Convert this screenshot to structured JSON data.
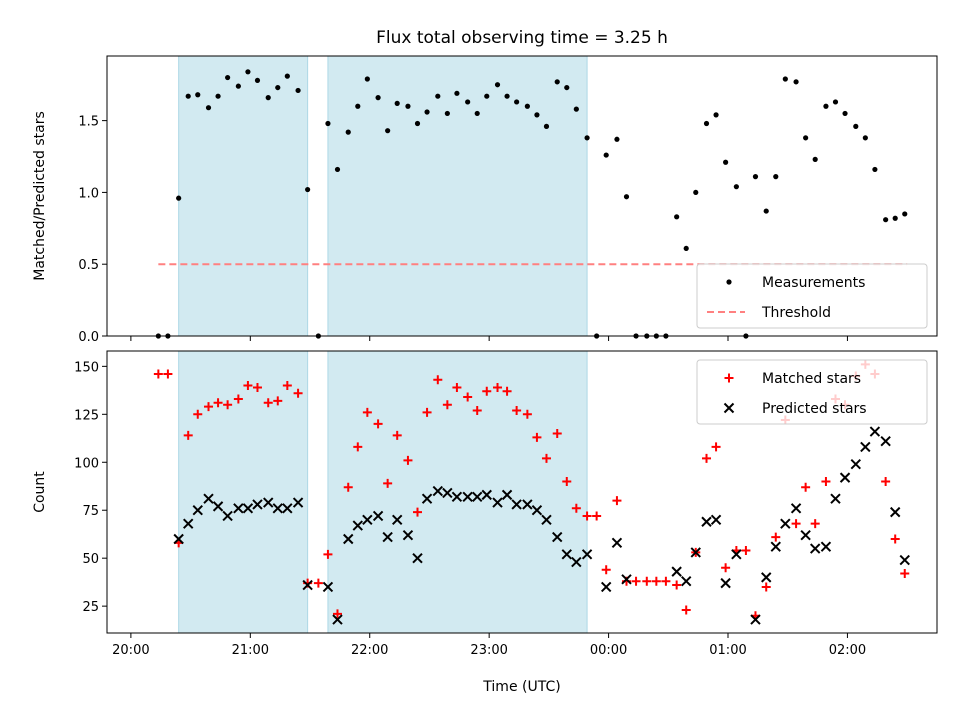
{
  "chart_data": {
    "type": "scatter",
    "title": "Flux total observing time = 3.25 h",
    "xlabel": "Time (UTC)",
    "x_unit": "hours after 20:00 UTC",
    "xlim": [
      -0.2,
      6.75
    ],
    "x_ticks": [
      {
        "value": 0,
        "label": "20:00"
      },
      {
        "value": 1,
        "label": "21:00"
      },
      {
        "value": 2,
        "label": "22:00"
      },
      {
        "value": 3,
        "label": "23:00"
      },
      {
        "value": 4,
        "label": "00:00"
      },
      {
        "value": 5,
        "label": "01:00"
      },
      {
        "value": 6,
        "label": "02:00"
      }
    ],
    "shaded_intervals": [
      [
        0.4,
        1.48
      ],
      [
        1.65,
        3.82
      ]
    ],
    "shade_color": "#add8e6",
    "panels": [
      {
        "id": "ratio",
        "ylabel": "Matched/Predicted stars",
        "ylim": [
          0,
          1.95
        ],
        "y_ticks": [
          0.0,
          0.5,
          1.0,
          1.5
        ],
        "y_tick_labels": [
          "0.0",
          "0.5",
          "1.0",
          "1.5"
        ],
        "legend": {
          "placement": "lower right",
          "entries": [
            "Measurements",
            "Threshold"
          ]
        },
        "threshold": {
          "name": "Threshold",
          "value": 0.5,
          "x_range": [
            0.23,
            6.5
          ],
          "color": "#ff8080"
        },
        "series": [
          {
            "name": "Measurements",
            "marker": "dot",
            "color": "#000000",
            "points": [
              [
                0.23,
                0.0
              ],
              [
                0.31,
                0.0
              ],
              [
                0.4,
                0.96
              ],
              [
                0.48,
                1.67
              ],
              [
                0.56,
                1.68
              ],
              [
                0.65,
                1.59
              ],
              [
                0.73,
                1.67
              ],
              [
                0.81,
                1.8
              ],
              [
                0.9,
                1.74
              ],
              [
                0.98,
                1.84
              ],
              [
                1.06,
                1.78
              ],
              [
                1.15,
                1.66
              ],
              [
                1.23,
                1.73
              ],
              [
                1.31,
                1.81
              ],
              [
                1.4,
                1.71
              ],
              [
                1.48,
                1.02
              ],
              [
                1.57,
                0.0
              ],
              [
                1.65,
                1.48
              ],
              [
                1.73,
                1.16
              ],
              [
                1.82,
                1.42
              ],
              [
                1.9,
                1.6
              ],
              [
                1.98,
                1.79
              ],
              [
                2.07,
                1.66
              ],
              [
                2.15,
                1.43
              ],
              [
                2.23,
                1.62
              ],
              [
                2.32,
                1.6
              ],
              [
                2.4,
                1.48
              ],
              [
                2.48,
                1.56
              ],
              [
                2.57,
                1.67
              ],
              [
                2.65,
                1.55
              ],
              [
                2.73,
                1.69
              ],
              [
                2.82,
                1.63
              ],
              [
                2.9,
                1.55
              ],
              [
                2.98,
                1.67
              ],
              [
                3.07,
                1.75
              ],
              [
                3.15,
                1.67
              ],
              [
                3.23,
                1.63
              ],
              [
                3.32,
                1.6
              ],
              [
                3.4,
                1.54
              ],
              [
                3.48,
                1.46
              ],
              [
                3.57,
                1.77
              ],
              [
                3.65,
                1.73
              ],
              [
                3.73,
                1.58
              ],
              [
                3.82,
                1.38
              ],
              [
                3.9,
                0.0
              ],
              [
                3.98,
                1.26
              ],
              [
                4.07,
                1.37
              ],
              [
                4.15,
                0.97
              ],
              [
                4.23,
                0.0
              ],
              [
                4.32,
                0.0
              ],
              [
                4.4,
                0.0
              ],
              [
                4.48,
                0.0
              ],
              [
                4.57,
                0.83
              ],
              [
                4.65,
                0.61
              ],
              [
                4.73,
                1.0
              ],
              [
                4.82,
                1.48
              ],
              [
                4.9,
                1.54
              ],
              [
                4.98,
                1.21
              ],
              [
                5.07,
                1.04
              ],
              [
                5.15,
                0.0
              ],
              [
                5.23,
                1.11
              ],
              [
                5.32,
                0.87
              ],
              [
                5.4,
                1.11
              ],
              [
                5.48,
                1.79
              ],
              [
                5.57,
                1.77
              ],
              [
                5.65,
                1.38
              ],
              [
                5.73,
                1.23
              ],
              [
                5.82,
                1.6
              ],
              [
                5.9,
                1.63
              ],
              [
                5.98,
                1.55
              ],
              [
                6.07,
                1.46
              ],
              [
                6.15,
                1.38
              ],
              [
                6.23,
                1.16
              ],
              [
                6.32,
                0.81
              ],
              [
                6.4,
                0.82
              ],
              [
                6.48,
                0.85
              ]
            ]
          }
        ]
      },
      {
        "id": "count",
        "ylabel": "Count",
        "ylim": [
          11,
          158
        ],
        "y_ticks": [
          25,
          50,
          75,
          100,
          125,
          150
        ],
        "y_tick_labels": [
          "25",
          "50",
          "75",
          "100",
          "125",
          "150"
        ],
        "legend": {
          "placement": "upper right",
          "entries": [
            "Matched stars",
            "Predicted stars"
          ]
        },
        "series": [
          {
            "name": "Matched stars",
            "marker": "plus",
            "color": "#ff0000",
            "points": [
              [
                0.23,
                146
              ],
              [
                0.31,
                146
              ],
              [
                0.4,
                58
              ],
              [
                0.48,
                114
              ],
              [
                0.56,
                125
              ],
              [
                0.65,
                129
              ],
              [
                0.73,
                131
              ],
              [
                0.81,
                130
              ],
              [
                0.9,
                133
              ],
              [
                0.98,
                140
              ],
              [
                1.06,
                139
              ],
              [
                1.15,
                131
              ],
              [
                1.23,
                132
              ],
              [
                1.31,
                140
              ],
              [
                1.4,
                136
              ],
              [
                1.48,
                37
              ],
              [
                1.57,
                37
              ],
              [
                1.65,
                52
              ],
              [
                1.73,
                21
              ],
              [
                1.82,
                87
              ],
              [
                1.9,
                108
              ],
              [
                1.98,
                126
              ],
              [
                2.07,
                120
              ],
              [
                2.15,
                89
              ],
              [
                2.23,
                114
              ],
              [
                2.32,
                101
              ],
              [
                2.4,
                74
              ],
              [
                2.48,
                126
              ],
              [
                2.57,
                143
              ],
              [
                2.65,
                130
              ],
              [
                2.73,
                139
              ],
              [
                2.82,
                134
              ],
              [
                2.9,
                127
              ],
              [
                2.98,
                137
              ],
              [
                3.07,
                139
              ],
              [
                3.15,
                137
              ],
              [
                3.23,
                127
              ],
              [
                3.32,
                125
              ],
              [
                3.4,
                113
              ],
              [
                3.48,
                102
              ],
              [
                3.57,
                115
              ],
              [
                3.65,
                90
              ],
              [
                3.73,
                76
              ],
              [
                3.82,
                72
              ],
              [
                3.9,
                72
              ],
              [
                3.98,
                44
              ],
              [
                4.07,
                80
              ],
              [
                4.15,
                38
              ],
              [
                4.23,
                38
              ],
              [
                4.32,
                38
              ],
              [
                4.4,
                38
              ],
              [
                4.48,
                38
              ],
              [
                4.57,
                36
              ],
              [
                4.65,
                23
              ],
              [
                4.73,
                53
              ],
              [
                4.82,
                102
              ],
              [
                4.9,
                108
              ],
              [
                4.98,
                45
              ],
              [
                5.07,
                54
              ],
              [
                5.15,
                54
              ],
              [
                5.23,
                20
              ],
              [
                5.32,
                35
              ],
              [
                5.4,
                61
              ],
              [
                5.48,
                122
              ],
              [
                5.57,
                68
              ],
              [
                5.65,
                87
              ],
              [
                5.73,
                68
              ],
              [
                5.82,
                90
              ],
              [
                5.9,
                133
              ],
              [
                5.98,
                130
              ],
              [
                6.07,
                145
              ],
              [
                6.15,
                151
              ],
              [
                6.23,
                146
              ],
              [
                6.32,
                90
              ],
              [
                6.4,
                60
              ],
              [
                6.48,
                42
              ]
            ]
          },
          {
            "name": "Predicted stars",
            "marker": "x",
            "color": "#000000",
            "points": [
              [
                0.4,
                60
              ],
              [
                0.48,
                68
              ],
              [
                0.56,
                75
              ],
              [
                0.65,
                81
              ],
              [
                0.73,
                77
              ],
              [
                0.81,
                72
              ],
              [
                0.9,
                76
              ],
              [
                0.98,
                76
              ],
              [
                1.06,
                78
              ],
              [
                1.15,
                79
              ],
              [
                1.23,
                76
              ],
              [
                1.31,
                76
              ],
              [
                1.4,
                79
              ],
              [
                1.48,
                36
              ],
              [
                1.65,
                35
              ],
              [
                1.73,
                18
              ],
              [
                1.82,
                60
              ],
              [
                1.9,
                67
              ],
              [
                1.98,
                70
              ],
              [
                2.07,
                72
              ],
              [
                2.15,
                61
              ],
              [
                2.23,
                70
              ],
              [
                2.32,
                62
              ],
              [
                2.4,
                50
              ],
              [
                2.48,
                81
              ],
              [
                2.57,
                85
              ],
              [
                2.65,
                84
              ],
              [
                2.73,
                82
              ],
              [
                2.82,
                82
              ],
              [
                2.9,
                82
              ],
              [
                2.98,
                83
              ],
              [
                3.07,
                79
              ],
              [
                3.15,
                83
              ],
              [
                3.23,
                78
              ],
              [
                3.32,
                78
              ],
              [
                3.4,
                75
              ],
              [
                3.48,
                70
              ],
              [
                3.57,
                61
              ],
              [
                3.65,
                52
              ],
              [
                3.73,
                48
              ],
              [
                3.82,
                52
              ],
              [
                3.98,
                35
              ],
              [
                4.07,
                58
              ],
              [
                4.15,
                39
              ],
              [
                4.57,
                43
              ],
              [
                4.65,
                38
              ],
              [
                4.73,
                53
              ],
              [
                4.82,
                69
              ],
              [
                4.9,
                70
              ],
              [
                4.98,
                37
              ],
              [
                5.07,
                52
              ],
              [
                5.23,
                18
              ],
              [
                5.32,
                40
              ],
              [
                5.4,
                56
              ],
              [
                5.48,
                68
              ],
              [
                5.57,
                76
              ],
              [
                5.65,
                62
              ],
              [
                5.73,
                55
              ],
              [
                5.82,
                56
              ],
              [
                5.9,
                81
              ],
              [
                5.98,
                92
              ],
              [
                6.07,
                99
              ],
              [
                6.15,
                108
              ],
              [
                6.23,
                116
              ],
              [
                6.32,
                111
              ],
              [
                6.4,
                74
              ],
              [
                6.48,
                49
              ]
            ]
          }
        ]
      }
    ]
  }
}
